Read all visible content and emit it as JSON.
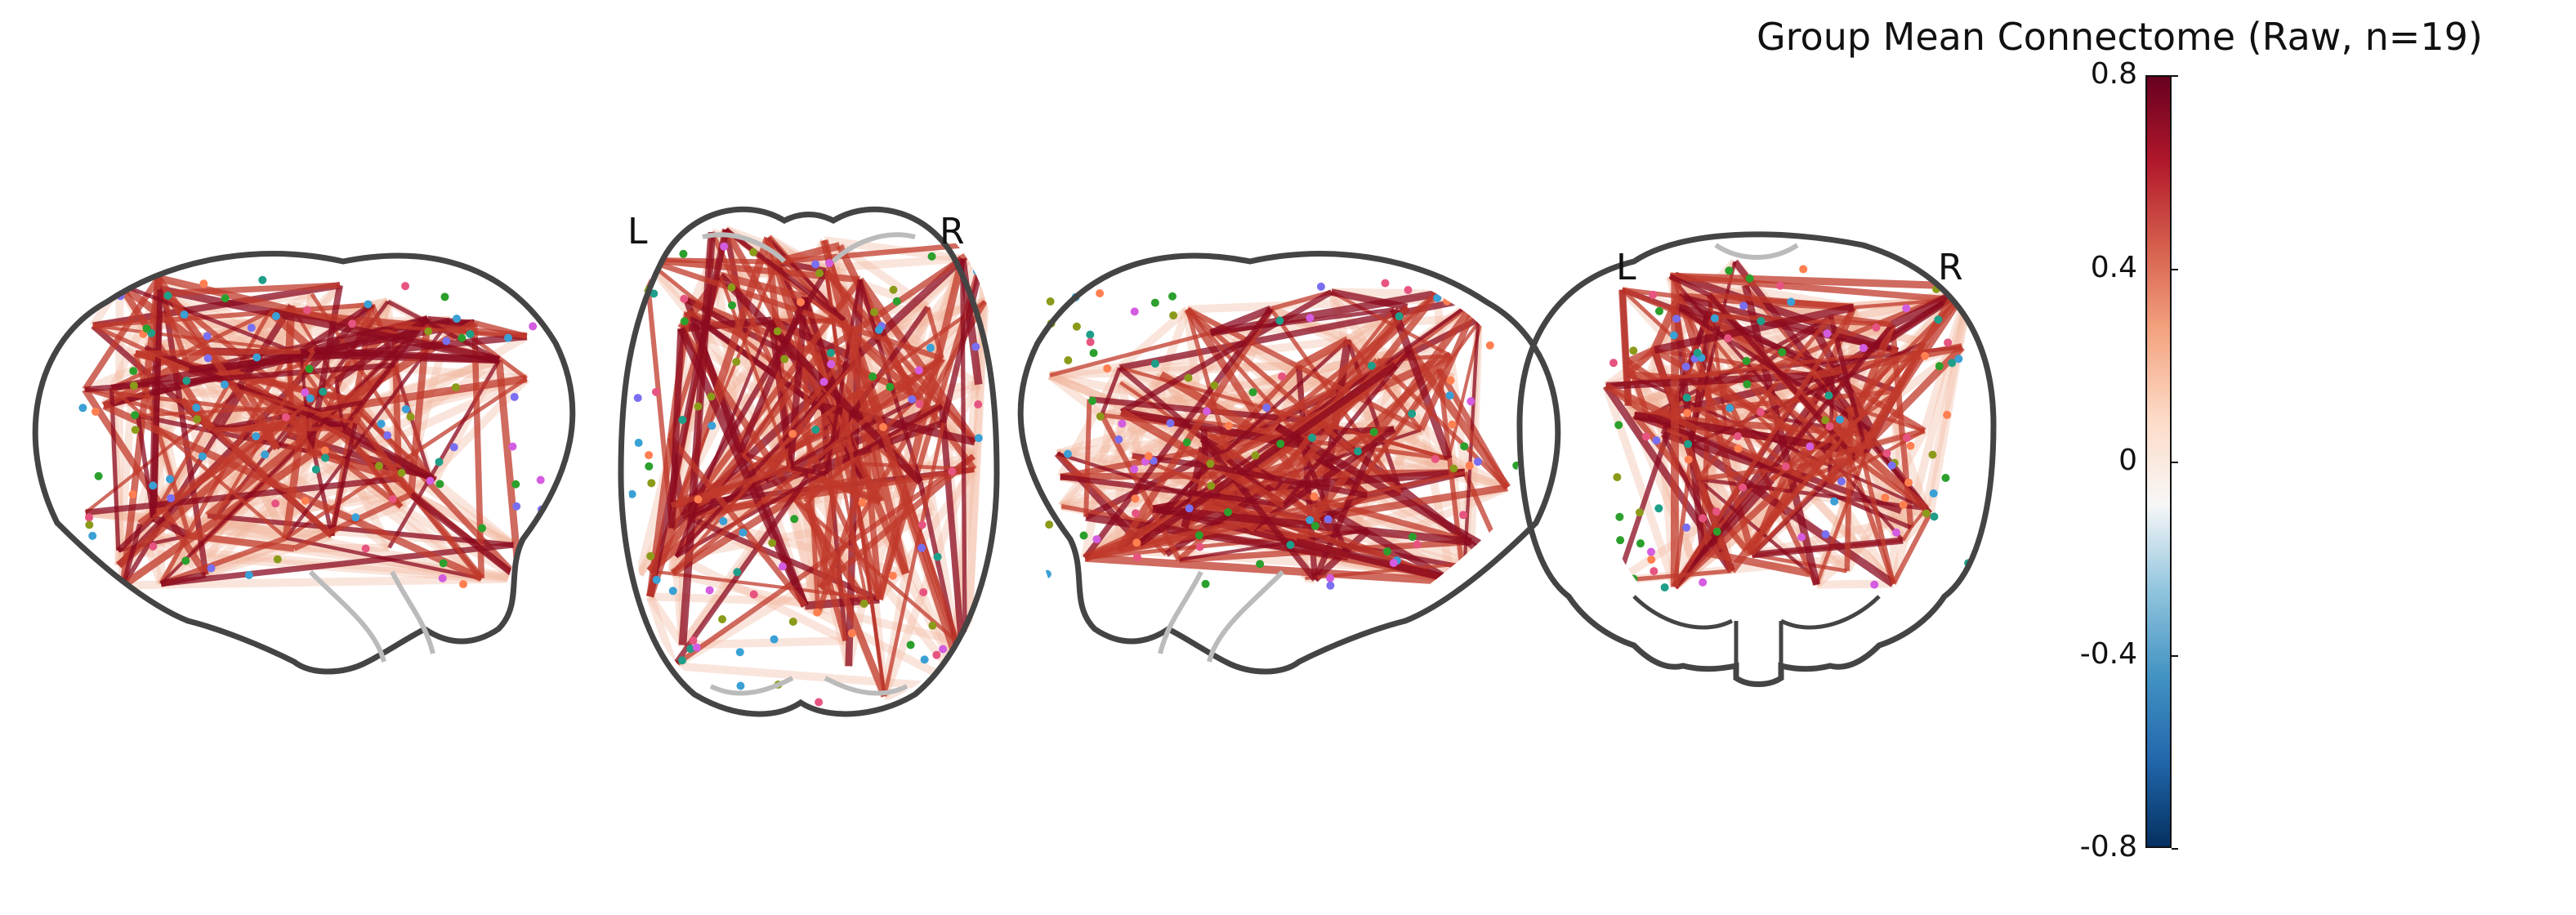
{
  "title": "Group Mean Connectome (Raw, n=19)",
  "views": [
    {
      "name": "sagittal-left"
    },
    {
      "name": "axial",
      "left_label": "L",
      "right_label": "R"
    },
    {
      "name": "sagittal-right"
    },
    {
      "name": "coronal",
      "left_label": "L",
      "right_label": "R"
    }
  ],
  "colorbar": {
    "ticks": [
      "0.8",
      "0.4",
      "0",
      "-0.4",
      "-0.8"
    ],
    "values": [
      0.8,
      0.4,
      0,
      -0.4,
      -0.8
    ],
    "range": [
      -0.8,
      0.8
    ],
    "colormap_stops": [
      "#053061",
      "#2166ac",
      "#4393c3",
      "#92c5de",
      "#f7f7f7",
      "#fddbc7",
      "#f4a582",
      "#d6604d",
      "#b2182b",
      "#67001f"
    ]
  },
  "colors": {
    "edge_strong": "#8b0a1f",
    "edge_mid": "#c0392b",
    "edge_weak": "#f2b49a",
    "outline": "#444444",
    "inner_outline": "#bbbbbb"
  }
}
